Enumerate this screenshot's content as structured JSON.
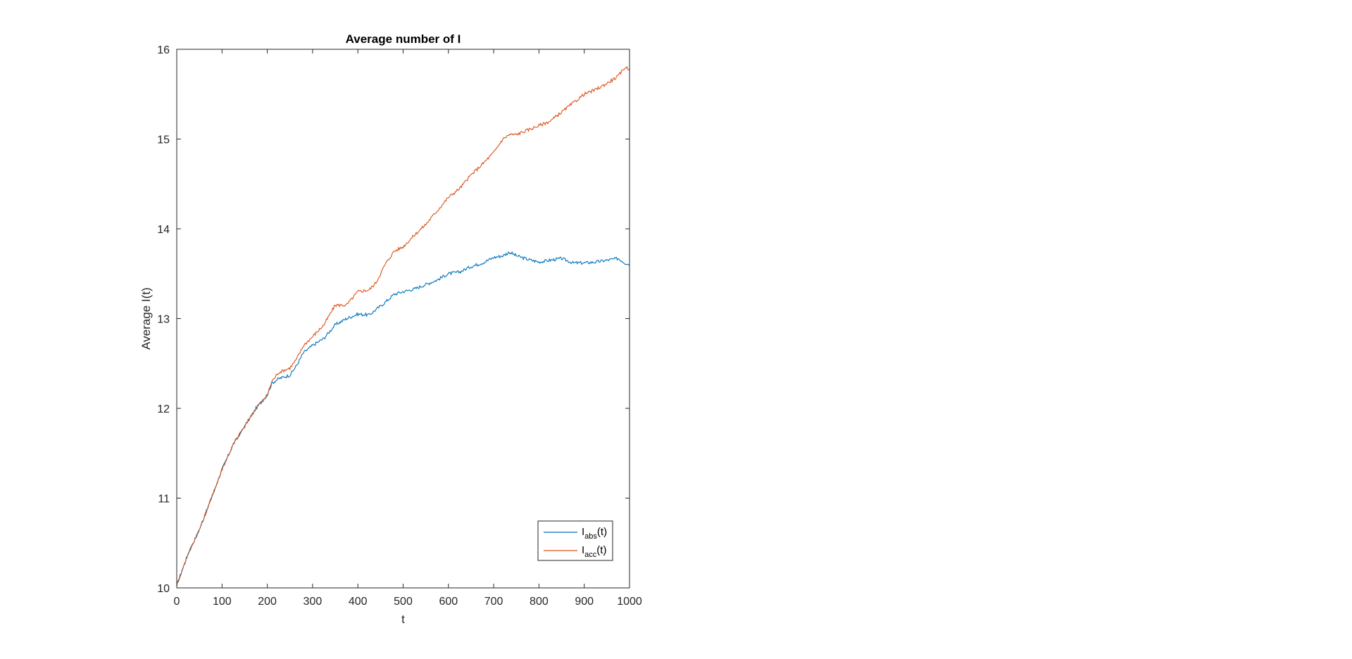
{
  "chart_data": {
    "type": "line",
    "title": "Average number of I",
    "xlabel": "t",
    "ylabel": "Average I(t)",
    "xlim": [
      0,
      1000
    ],
    "ylim": [
      10,
      16
    ],
    "xticks": [
      "0",
      "100",
      "200",
      "300",
      "400",
      "500",
      "600",
      "700",
      "800",
      "900",
      "1000"
    ],
    "yticks": [
      "10",
      "11",
      "12",
      "13",
      "14",
      "15",
      "16"
    ],
    "grid": false,
    "legend_position": "bottom-right",
    "series": [
      {
        "name_base": "I",
        "name_sub": "abs",
        "name_suffix": "(t)",
        "color": "#0072BD",
        "x": [
          0,
          25,
          50,
          75,
          100,
          125,
          150,
          175,
          200,
          210,
          225,
          250,
          265,
          280,
          300,
          325,
          350,
          375,
          400,
          425,
          440,
          460,
          480,
          500,
          525,
          550,
          575,
          600,
          625,
          650,
          675,
          700,
          720,
          735,
          750,
          775,
          800,
          825,
          850,
          875,
          900,
          925,
          950,
          975,
          990,
          1000
        ],
        "y": [
          10.03,
          10.38,
          10.65,
          10.98,
          11.32,
          11.6,
          11.8,
          12.0,
          12.15,
          12.28,
          12.33,
          12.37,
          12.48,
          12.62,
          12.7,
          12.78,
          12.93,
          13.0,
          13.05,
          13.04,
          13.1,
          13.18,
          13.27,
          13.3,
          13.33,
          13.38,
          13.43,
          13.5,
          13.52,
          13.58,
          13.62,
          13.68,
          13.7,
          13.74,
          13.7,
          13.66,
          13.63,
          13.65,
          13.67,
          13.62,
          13.62,
          13.63,
          13.65,
          13.67,
          13.62,
          13.6
        ]
      },
      {
        "name_base": "I",
        "name_sub": "acc",
        "name_suffix": "(t)",
        "color": "#D95319",
        "x": [
          0,
          25,
          50,
          75,
          100,
          125,
          150,
          175,
          200,
          210,
          225,
          250,
          265,
          280,
          300,
          325,
          350,
          375,
          400,
          425,
          440,
          460,
          480,
          500,
          525,
          550,
          575,
          600,
          625,
          650,
          675,
          700,
          720,
          735,
          750,
          775,
          800,
          825,
          850,
          875,
          900,
          925,
          950,
          975,
          990,
          1000
        ],
        "y": [
          10.03,
          10.38,
          10.65,
          10.98,
          11.32,
          11.6,
          11.8,
          12.0,
          12.15,
          12.3,
          12.4,
          12.45,
          12.55,
          12.7,
          12.8,
          12.93,
          13.15,
          13.15,
          13.3,
          13.32,
          13.4,
          13.6,
          13.75,
          13.8,
          13.93,
          14.05,
          14.2,
          14.35,
          14.45,
          14.6,
          14.72,
          14.85,
          15.0,
          15.05,
          15.05,
          15.1,
          15.15,
          15.2,
          15.3,
          15.4,
          15.5,
          15.55,
          15.62,
          15.7,
          15.8,
          15.78
        ]
      }
    ]
  }
}
